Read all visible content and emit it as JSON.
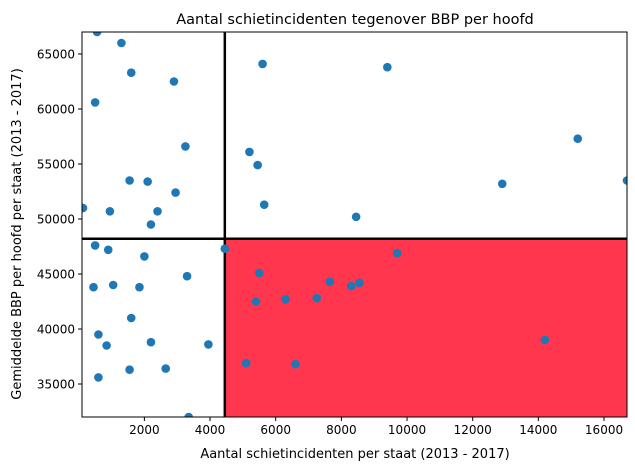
{
  "chart_data": {
    "type": "scatter",
    "title": "Aantal schietincidenten tegenover BBP per hoofd",
    "xlabel": "Aantal schietincidenten per staat (2013 - 2017)",
    "ylabel": "Gemiddelde BBP per hoofd per staat (2013 - 2017)",
    "xlim": [
      100,
      16700
    ],
    "ylim": [
      32000,
      67000
    ],
    "x_ticks": [
      2000,
      4000,
      6000,
      8000,
      10000,
      12000,
      14000,
      16000
    ],
    "y_ticks": [
      35000,
      40000,
      45000,
      50000,
      55000,
      60000,
      65000
    ],
    "x_tick_labels": [
      "2000",
      "4000",
      "6000",
      "8000",
      "10000",
      "12000",
      "14000",
      "16000"
    ],
    "y_tick_labels": [
      "35000",
      "40000",
      "45000",
      "50000",
      "55000",
      "60000",
      "65000"
    ],
    "vline_x": 4450,
    "hline_y": 48200,
    "highlight_region": {
      "x": [
        4450,
        16700
      ],
      "y": [
        32000,
        48200
      ],
      "color": "#ff364d"
    },
    "marker_color": "#1f77b4",
    "grid": false,
    "points": [
      [
        560,
        67000
      ],
      [
        1300,
        66000
      ],
      [
        1600,
        63300
      ],
      [
        2900,
        62500
      ],
      [
        500,
        60600
      ],
      [
        3250,
        56600
      ],
      [
        1550,
        53500
      ],
      [
        2100,
        53400
      ],
      [
        2950,
        52400
      ],
      [
        2400,
        50700
      ],
      [
        950,
        50700
      ],
      [
        130,
        51000
      ],
      [
        2200,
        49500
      ],
      [
        500,
        47600
      ],
      [
        900,
        47200
      ],
      [
        4450,
        47300
      ],
      [
        2000,
        46600
      ],
      [
        3300,
        44800
      ],
      [
        450,
        43800
      ],
      [
        1050,
        44000
      ],
      [
        1850,
        43800
      ],
      [
        1600,
        41000
      ],
      [
        600,
        39500
      ],
      [
        850,
        38500
      ],
      [
        2200,
        38800
      ],
      [
        3950,
        38600
      ],
      [
        600,
        35600
      ],
      [
        1550,
        36300
      ],
      [
        2650,
        36400
      ],
      [
        3350,
        32000
      ],
      [
        5600,
        64100
      ],
      [
        9400,
        63800
      ],
      [
        15200,
        57300
      ],
      [
        5200,
        56100
      ],
      [
        5450,
        54900
      ],
      [
        5650,
        51300
      ],
      [
        12900,
        53200
      ],
      [
        16700,
        53500
      ],
      [
        8450,
        50200
      ],
      [
        9700,
        46900
      ],
      [
        5500,
        45100
      ],
      [
        7650,
        44300
      ],
      [
        8550,
        44200
      ],
      [
        8300,
        43900
      ],
      [
        5400,
        42500
      ],
      [
        6300,
        42700
      ],
      [
        7250,
        42800
      ],
      [
        14200,
        39000
      ],
      [
        5100,
        36900
      ],
      [
        6600,
        36800
      ]
    ]
  }
}
